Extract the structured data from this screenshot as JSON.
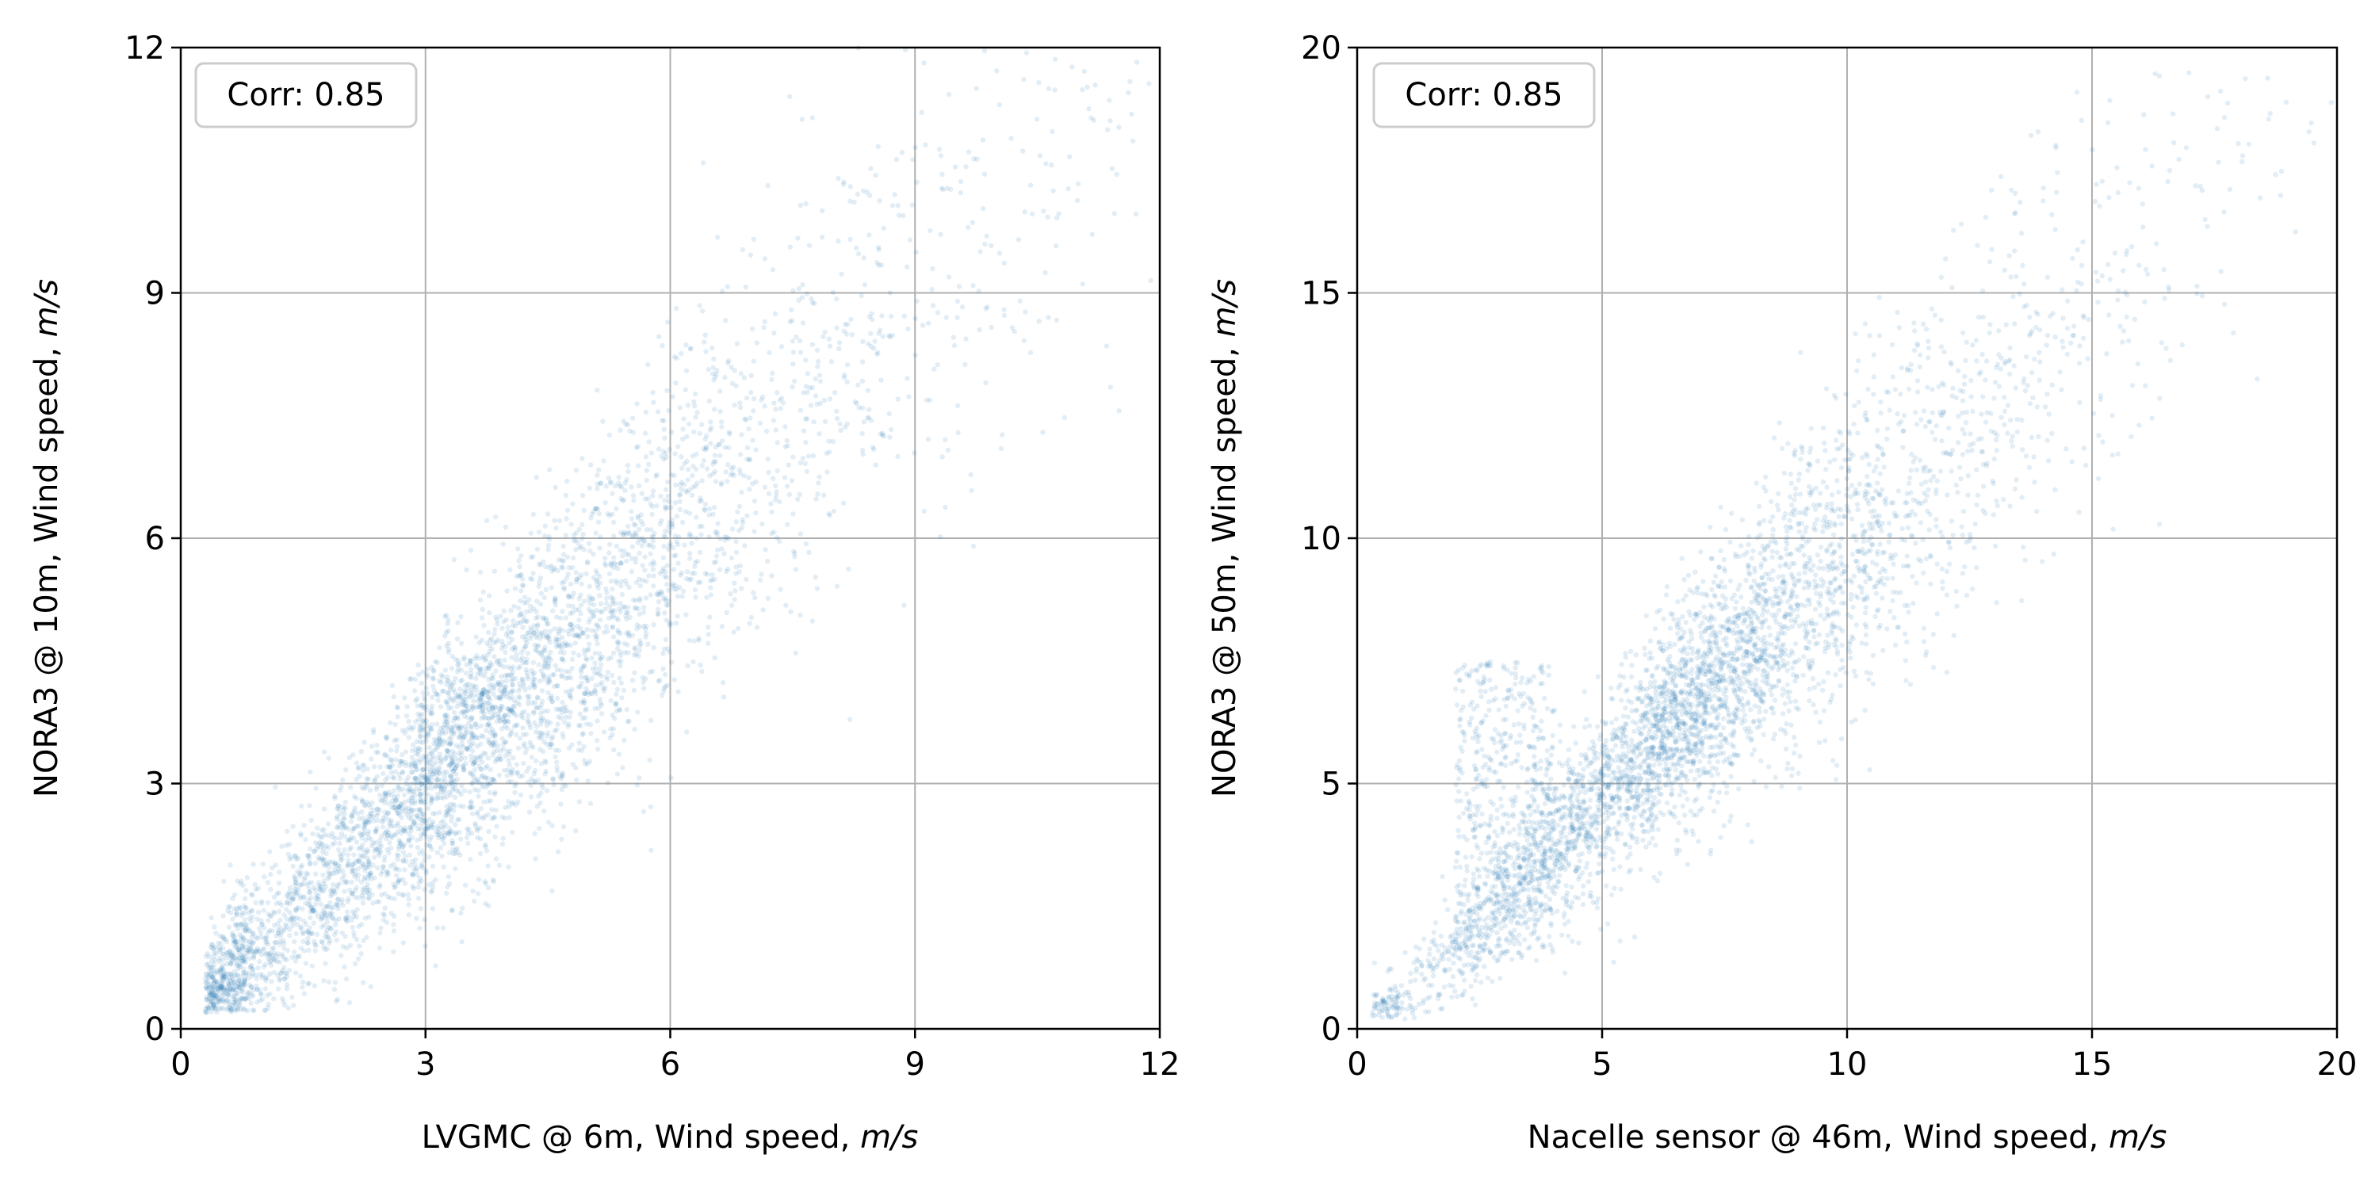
{
  "chart_data": [
    {
      "type": "scatter",
      "title": "",
      "xlabel_main": "LVGMC @ 6m, Wind speed, ",
      "xlabel_unit": "m/s",
      "ylabel_main": "NORA3 @ 10m, Wind speed, ",
      "ylabel_unit": "m/s",
      "xlim": [
        0,
        12
      ],
      "ylim": [
        0,
        12
      ],
      "xticks": [
        0,
        3,
        6,
        9,
        12
      ],
      "yticks": [
        0,
        3,
        6,
        9,
        12
      ],
      "grid": true,
      "annotation": "Corr: 0.85",
      "annotation_position": "top-left",
      "point_color": "#1f77b4",
      "point_alpha": 0.1,
      "n_points_approx": 16000,
      "trend": {
        "slope": 1.0,
        "intercept": 0.0,
        "x_mean": 2.8,
        "x_spread": 1.9
      }
    },
    {
      "type": "scatter",
      "title": "",
      "xlabel_main": "Nacelle sensor @ 46m, Wind speed, ",
      "xlabel_unit": "m/s",
      "ylabel_main": "NORA3 @ 50m, Wind speed, ",
      "ylabel_unit": "m/s",
      "xlim": [
        0,
        20
      ],
      "ylim": [
        0,
        20
      ],
      "xticks": [
        0,
        5,
        10,
        15,
        20
      ],
      "yticks": [
        0,
        5,
        10,
        15,
        20
      ],
      "grid": true,
      "annotation": "Corr: 0.85",
      "annotation_position": "top-left",
      "point_color": "#1f77b4",
      "point_alpha": 0.1,
      "n_points_approx": 16000,
      "trend": {
        "slope": 1.0,
        "intercept": -0.3,
        "x_mean": 5.8,
        "x_spread": 2.6
      }
    }
  ]
}
